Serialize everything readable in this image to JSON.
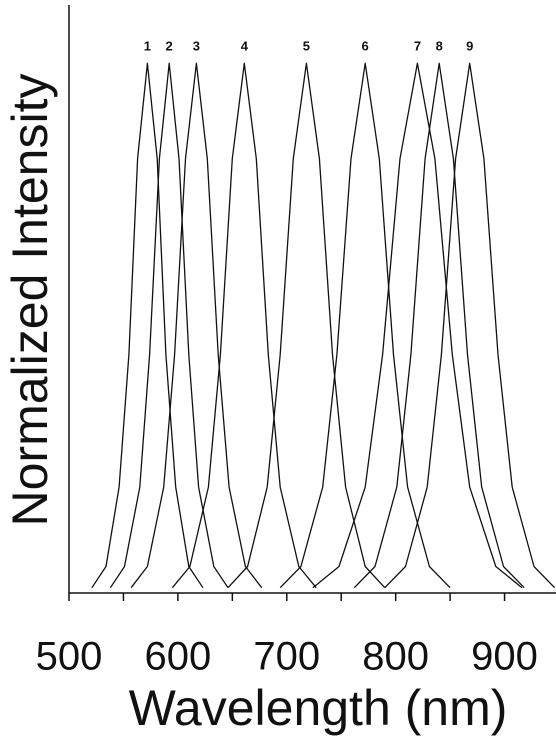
{
  "chart_data": {
    "type": "line",
    "xlabel": "Wavelength (nm)",
    "ylabel": "Normalized Intensity",
    "xlim": [
      500,
      950
    ],
    "ylim": [
      0,
      1.11
    ],
    "xticks": [
      500,
      600,
      700,
      800,
      900
    ],
    "xminor_ticks": [
      550,
      650,
      750,
      850
    ],
    "color": "#111111",
    "series": [
      {
        "name": "1",
        "x": [
          521,
          534,
          546,
          555,
          563,
          572,
          581,
          589,
          598,
          610,
          623
        ],
        "values": [
          0.01,
          0.05,
          0.2,
          0.45,
          0.82,
          1,
          0.82,
          0.45,
          0.2,
          0.05,
          0.01
        ]
      },
      {
        "name": "2",
        "x": [
          538,
          551,
          565,
          574,
          583,
          592,
          601,
          610,
          619,
          633,
          646
        ],
        "values": [
          0.01,
          0.05,
          0.2,
          0.45,
          0.82,
          1,
          0.82,
          0.45,
          0.2,
          0.05,
          0.01
        ]
      },
      {
        "name": "3",
        "x": [
          557,
          572,
          587,
          597,
          607,
          617,
          627,
          637,
          647,
          662,
          677
        ],
        "values": [
          0.01,
          0.05,
          0.2,
          0.45,
          0.82,
          1,
          0.82,
          0.45,
          0.2,
          0.05,
          0.01
        ]
      },
      {
        "name": "4",
        "x": [
          595,
          611,
          628,
          639,
          650,
          661,
          672,
          683,
          694,
          711,
          727
        ],
        "values": [
          0.01,
          0.05,
          0.2,
          0.45,
          0.82,
          1,
          0.82,
          0.45,
          0.2,
          0.05,
          0.01
        ]
      },
      {
        "name": "5",
        "x": [
          646,
          664,
          682,
          694,
          706,
          718,
          730,
          742,
          754,
          772,
          790
        ],
        "values": [
          0.01,
          0.05,
          0.2,
          0.45,
          0.82,
          1,
          0.82,
          0.45,
          0.2,
          0.05,
          0.01
        ]
      },
      {
        "name": "6",
        "x": [
          694,
          713,
          733,
          746,
          759,
          772,
          785,
          798,
          811,
          831,
          850
        ],
        "values": [
          0.01,
          0.05,
          0.2,
          0.45,
          0.82,
          1,
          0.82,
          0.45,
          0.2,
          0.05,
          0.01
        ]
      },
      {
        "name": "7",
        "x": [
          724,
          748,
          772,
          788,
          804,
          820,
          836,
          852,
          868,
          892,
          916
        ],
        "values": [
          0.01,
          0.05,
          0.2,
          0.45,
          0.82,
          1,
          0.82,
          0.45,
          0.2,
          0.05,
          0.01
        ]
      },
      {
        "name": "8",
        "x": [
          762,
          781,
          801,
          814,
          827,
          840,
          853,
          866,
          879,
          899,
          918
        ],
        "values": [
          0.01,
          0.05,
          0.2,
          0.45,
          0.82,
          1,
          0.82,
          0.45,
          0.2,
          0.05,
          0.01
        ]
      },
      {
        "name": "9",
        "x": [
          790,
          809,
          829,
          842,
          855,
          868,
          881,
          894,
          907,
          927,
          946
        ],
        "values": [
          0.01,
          0.05,
          0.2,
          0.45,
          0.82,
          1,
          0.82,
          0.45,
          0.2,
          0.05,
          0.01
        ]
      }
    ]
  }
}
